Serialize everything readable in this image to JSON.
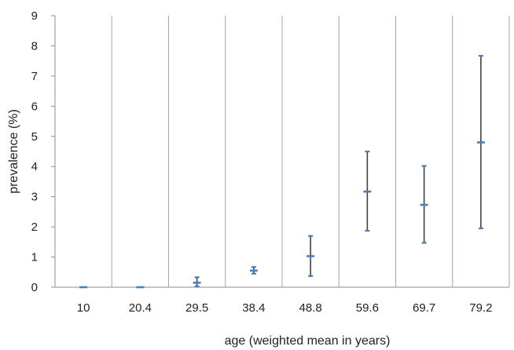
{
  "chart_data": {
    "type": "scatter",
    "title": "",
    "xlabel": "age (weighted mean in years)",
    "ylabel": "prevalence (%)",
    "categories": [
      "10",
      "20.4",
      "29.5",
      "38.4",
      "48.8",
      "59.6",
      "69.7",
      "79.2"
    ],
    "ylim": [
      0,
      9
    ],
    "yticks": [
      "0",
      "1",
      "2",
      "3",
      "4",
      "5",
      "6",
      "7",
      "8",
      "9"
    ],
    "series": [
      {
        "values": [
          0.0,
          0.0,
          0.15,
          0.55,
          1.03,
          3.17,
          2.73,
          4.8
        ],
        "lower": [
          0.0,
          0.0,
          0.03,
          0.45,
          0.37,
          1.87,
          1.47,
          1.95
        ],
        "upper": [
          0.0,
          0.0,
          0.33,
          0.67,
          1.7,
          4.5,
          4.02,
          7.67
        ]
      }
    ],
    "grid": "vertical separators between categories",
    "legend": "none",
    "colors": {
      "marker": "#4a7ebb",
      "errorbar": "#404040",
      "grid": "#a6a6a6",
      "axis": "#8c8c8c"
    }
  }
}
